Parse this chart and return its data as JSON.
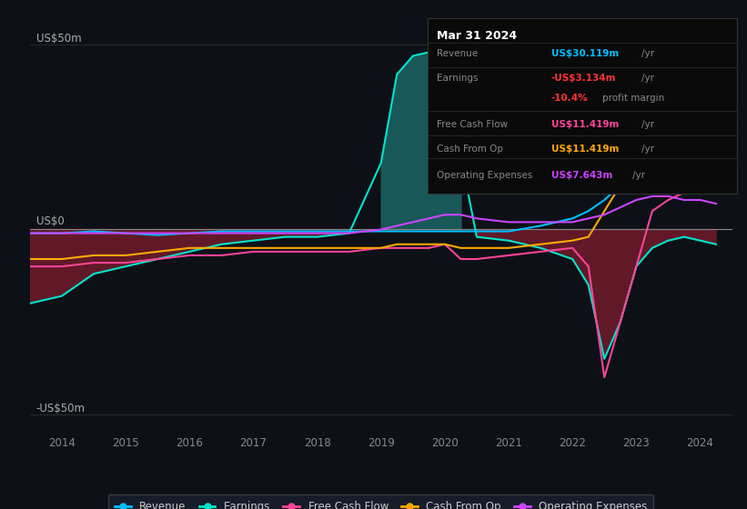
{
  "background_color": "#0d1117",
  "plot_bg_color": "#0d1117",
  "ylabel_top": "US$50m",
  "ylabel_zero": "US$0",
  "ylabel_bot": "-US$50m",
  "ylim": [
    -55,
    58
  ],
  "xlim": [
    2013.5,
    2024.5
  ],
  "xticks": [
    2014,
    2015,
    2016,
    2017,
    2018,
    2019,
    2020,
    2021,
    2022,
    2023,
    2024
  ],
  "colors": {
    "revenue": "#00bfff",
    "earnings": "#00e5cc",
    "free_cash_flow": "#ff4499",
    "cash_from_op": "#ffaa00",
    "operating_expenses": "#cc44ff",
    "fill_positive": "#1a6060",
    "fill_negative": "#6b1a2a"
  },
  "legend": [
    {
      "label": "Revenue",
      "color": "#00bfff"
    },
    {
      "label": "Earnings",
      "color": "#00e5cc"
    },
    {
      "label": "Free Cash Flow",
      "color": "#ff4499"
    },
    {
      "label": "Cash From Op",
      "color": "#ffaa00"
    },
    {
      "label": "Operating Expenses",
      "color": "#cc44ff"
    }
  ],
  "tooltip": {
    "title": "Mar 31 2024",
    "bg": "#0a0a0a",
    "border": "#333333",
    "row_labels": [
      "Revenue",
      "Earnings",
      "",
      "Free Cash Flow",
      "Cash From Op",
      "Operating Expenses"
    ],
    "row_values": [
      "US$30.119m /yr",
      "-US$3.134m /yr",
      "-10.4% profit margin",
      "US$11.419m /yr",
      "US$11.419m /yr",
      "US$7.643m /yr"
    ],
    "row_colors": [
      "#00bfff",
      "#ff3333",
      "#ff3333",
      "#ff4499",
      "#ffaa00",
      "#cc44ff"
    ]
  },
  "series": {
    "x": [
      2013.5,
      2014.0,
      2014.5,
      2015.0,
      2015.5,
      2016.0,
      2016.5,
      2017.0,
      2017.5,
      2018.0,
      2018.5,
      2019.0,
      2019.25,
      2019.5,
      2019.75,
      2020.0,
      2020.25,
      2020.5,
      2021.0,
      2021.5,
      2022.0,
      2022.25,
      2022.5,
      2022.75,
      2023.0,
      2023.25,
      2023.5,
      2023.75,
      2024.0,
      2024.25
    ],
    "revenue": [
      -1,
      -1,
      -0.5,
      -1,
      -1.5,
      -1,
      -0.5,
      -0.5,
      -0.5,
      -0.5,
      -0.5,
      -0.5,
      -0.5,
      -0.5,
      -0.5,
      -0.5,
      -0.5,
      -0.5,
      -0.5,
      1,
      3,
      5,
      8,
      12,
      16,
      20,
      25,
      30,
      33,
      35
    ],
    "earnings": [
      -20,
      -18,
      -12,
      -10,
      -8,
      -6,
      -4,
      -3,
      -2,
      -2,
      -1,
      18,
      42,
      47,
      48,
      47,
      20,
      -2,
      -3,
      -5,
      -8,
      -15,
      -35,
      -25,
      -10,
      -5,
      -3,
      -2,
      -3,
      -4
    ],
    "free_cash_flow": [
      -10,
      -10,
      -9,
      -9,
      -8,
      -7,
      -7,
      -6,
      -6,
      -6,
      -6,
      -5,
      -5,
      -5,
      -5,
      -4,
      -8,
      -8,
      -7,
      -6,
      -5,
      -10,
      -40,
      -25,
      -10,
      5,
      8,
      10,
      11,
      11
    ],
    "cash_from_op": [
      -8,
      -8,
      -7,
      -7,
      -6,
      -5,
      -5,
      -5,
      -5,
      -5,
      -5,
      -5,
      -4,
      -4,
      -4,
      -4,
      -5,
      -5,
      -5,
      -4,
      -3,
      -2,
      5,
      12,
      18,
      20,
      17,
      14,
      11,
      10
    ],
    "operating_expenses": [
      -1,
      -1,
      -1,
      -1,
      -1,
      -1,
      -1,
      -1,
      -1,
      -1,
      -1,
      0,
      1,
      2,
      3,
      4,
      4,
      3,
      2,
      2,
      2,
      3,
      4,
      6,
      8,
      9,
      9,
      8,
      8,
      7
    ]
  }
}
